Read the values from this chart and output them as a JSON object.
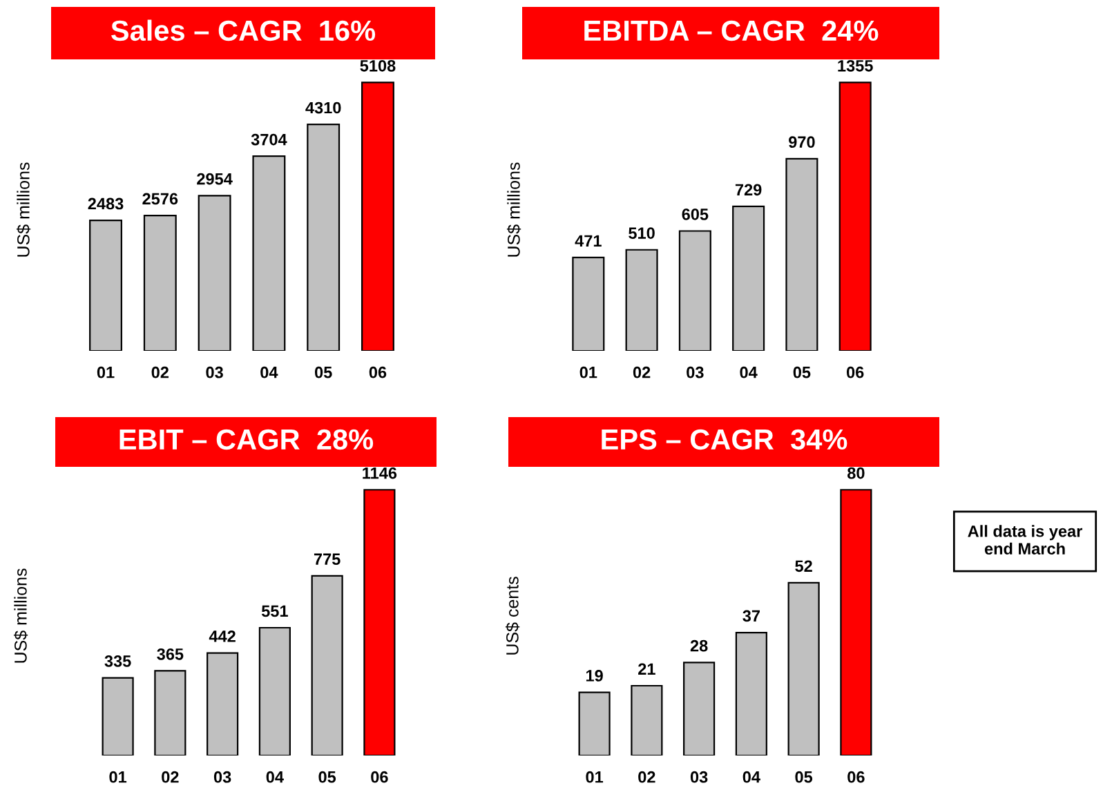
{
  "chart_data": [
    {
      "type": "bar",
      "title": "Sales – CAGR  16%",
      "ylabel": "US$ millions",
      "categories": [
        "01",
        "02",
        "03",
        "04",
        "05",
        "06"
      ],
      "values": [
        2483,
        2576,
        2954,
        3704,
        4310,
        5108
      ],
      "colors": [
        "#c0c0c0",
        "#c0c0c0",
        "#c0c0c0",
        "#c0c0c0",
        "#c0c0c0",
        "#ff0000"
      ],
      "data_labels": true
    },
    {
      "type": "bar",
      "title": "EBITDA – CAGR  24%",
      "ylabel": "US$ millions",
      "categories": [
        "01",
        "02",
        "03",
        "04",
        "05",
        "06"
      ],
      "values": [
        471,
        510,
        605,
        729,
        970,
        1355
      ],
      "colors": [
        "#c0c0c0",
        "#c0c0c0",
        "#c0c0c0",
        "#c0c0c0",
        "#c0c0c0",
        "#ff0000"
      ],
      "data_labels": true
    },
    {
      "type": "bar",
      "title": "EBIT – CAGR  28%",
      "ylabel": "US$ millions",
      "categories": [
        "01",
        "02",
        "03",
        "04",
        "05",
        "06"
      ],
      "values": [
        335,
        365,
        442,
        551,
        775,
        1146
      ],
      "colors": [
        "#c0c0c0",
        "#c0c0c0",
        "#c0c0c0",
        "#c0c0c0",
        "#c0c0c0",
        "#ff0000"
      ],
      "data_labels": true
    },
    {
      "type": "bar",
      "title": "EPS – CAGR  34%",
      "ylabel": "US$ cents",
      "categories": [
        "01",
        "02",
        "03",
        "04",
        "05",
        "06"
      ],
      "values": [
        19,
        21,
        28,
        37,
        52,
        80
      ],
      "colors": [
        "#c0c0c0",
        "#c0c0c0",
        "#c0c0c0",
        "#c0c0c0",
        "#c0c0c0",
        "#ff0000"
      ],
      "data_labels": true,
      "annotations": [
        "All data is year\nend March"
      ]
    }
  ]
}
